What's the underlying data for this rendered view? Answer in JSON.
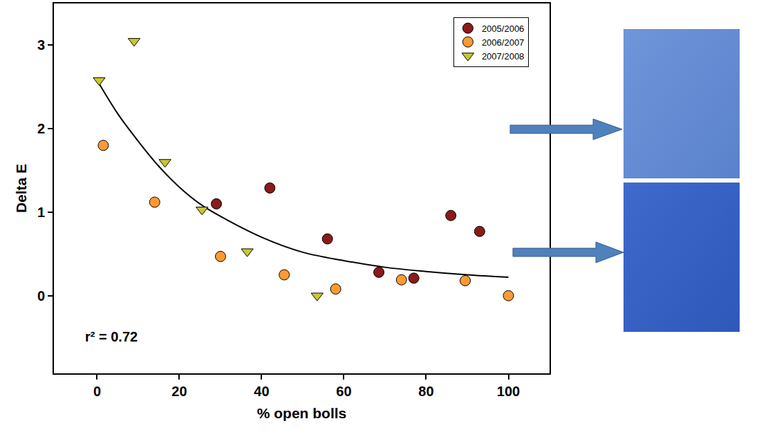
{
  "chart_data": {
    "type": "scatter",
    "xlabel": "% open bolls",
    "ylabel": "Delta E",
    "annotations": [
      "r² = 0.72"
    ],
    "xlim": [
      -10.5,
      110
    ],
    "ylim": [
      -0.93,
      3.5
    ],
    "xticks": [
      0,
      20,
      40,
      60,
      80,
      100
    ],
    "yticks": [
      0,
      1,
      2,
      3
    ],
    "grid": false,
    "legend": "upper right",
    "series": [
      {
        "name": "2005/2006",
        "color": "#8B1A1A",
        "marker": "circle",
        "x": [
          29,
          42,
          56,
          68.5,
          77,
          86,
          93
        ],
        "values": [
          1.1,
          1.29,
          0.68,
          0.28,
          0.21,
          0.96,
          0.77
        ]
      },
      {
        "name": "2006/2007",
        "color": "#FF9933",
        "marker": "circle",
        "x": [
          1.5,
          14,
          30,
          45.5,
          58,
          74,
          89.5,
          100
        ],
        "values": [
          1.8,
          1.12,
          0.47,
          0.25,
          0.08,
          0.19,
          0.18,
          0.0
        ]
      },
      {
        "name": "2007/2008",
        "color": "#C8C832",
        "marker": "triangle-down",
        "x": [
          0.5,
          9,
          16.5,
          25.5,
          36.5,
          53.5
        ],
        "values": [
          2.58,
          3.05,
          1.6,
          1.03,
          0.53,
          0.0
        ]
      }
    ],
    "curve": {
      "color": "#000000",
      "line_style": "solid",
      "x": [
        0,
        5,
        10,
        15,
        20,
        25,
        30,
        40,
        50,
        60,
        70,
        80,
        90,
        100
      ],
      "values": [
        2.58,
        2.18,
        1.85,
        1.55,
        1.3,
        1.1,
        0.95,
        0.7,
        0.52,
        0.42,
        0.34,
        0.29,
        0.25,
        0.22
      ]
    }
  }
}
